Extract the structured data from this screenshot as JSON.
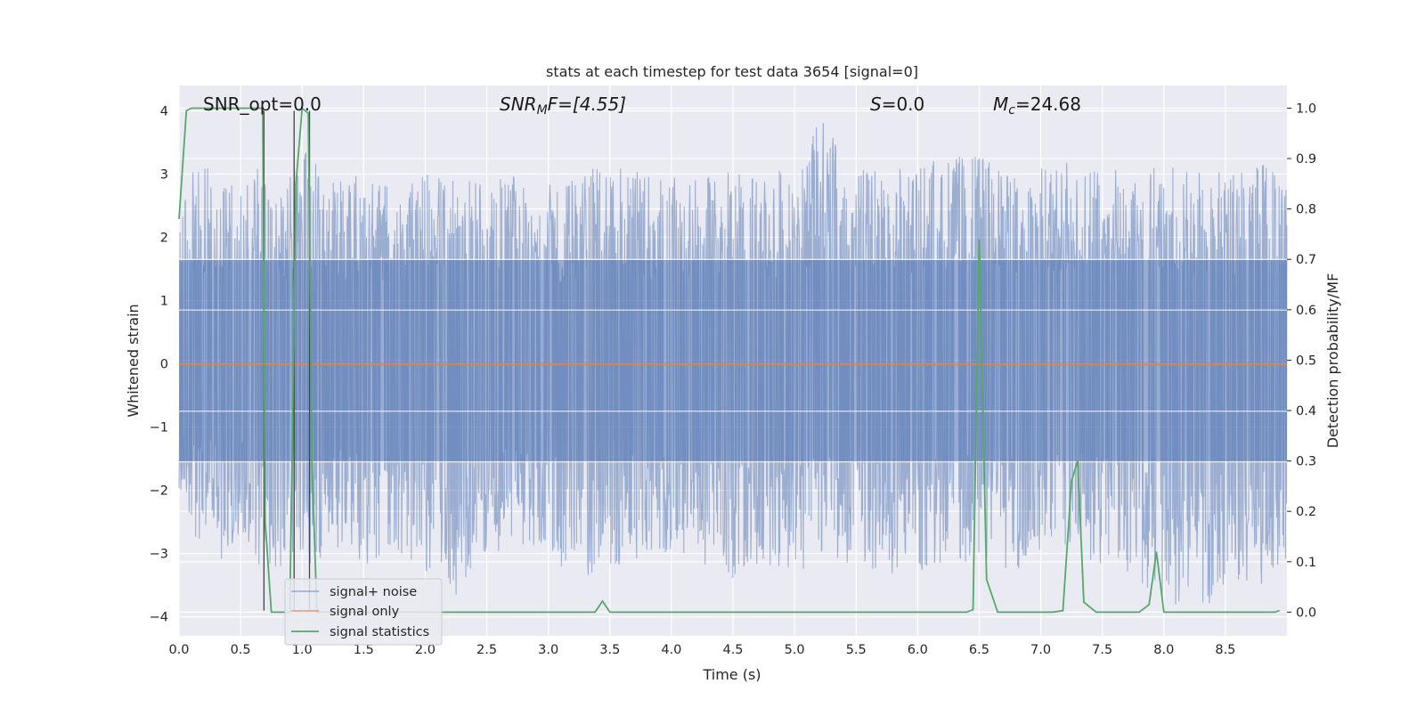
{
  "chart_data": {
    "type": "line",
    "title": "stats at each timestep for test data 3654 [signal=0]",
    "xlabel": "Time (s)",
    "ylabel_left": "Whitened strain",
    "ylabel_right": "Detection probability/MF",
    "xlim": [
      0.0,
      9.0
    ],
    "ylim_left": [
      -4.3,
      4.4
    ],
    "ylim_right": [
      -0.047,
      1.045
    ],
    "x_ticks": [
      "0.0",
      "0.5",
      "1.0",
      "1.5",
      "2.0",
      "2.5",
      "3.0",
      "3.5",
      "4.0",
      "4.5",
      "5.0",
      "5.5",
      "6.0",
      "6.5",
      "7.0",
      "7.5",
      "8.0",
      "8.5"
    ],
    "y_left_ticks": [
      "4",
      "3",
      "2",
      "1",
      "0",
      "−1",
      "−2",
      "−3",
      "−4"
    ],
    "y_right_ticks": [
      "1.0",
      "0.9",
      "0.8",
      "0.7",
      "0.6",
      "0.5",
      "0.4",
      "0.3",
      "0.2",
      "0.1",
      "0.0"
    ],
    "grid": true,
    "legend_position": "lower-left",
    "annotations": {
      "snr_opt": "SNR_opt=0.0",
      "snr_mf_sym": "SNR",
      "snr_mf_sub": "M",
      "snr_mf_rest": "F=[4.55]",
      "s_sym": "S",
      "s_rest": "=0.0",
      "mc_sym": "M",
      "mc_sub": "c",
      "mc_rest": "=24.68"
    },
    "colors": {
      "background": "#eaeaf2",
      "grid": "#ffffff",
      "signal_noise": "#4c72b0",
      "signal_only": "#dd8452",
      "signal_statistics": "#55a868",
      "vlines": "#444444"
    },
    "series": [
      {
        "name": "signal+ noise",
        "axis": "left",
        "note_values": "dense whitened noise, approx range -3.9..4.0, visual envelope peaks",
        "peak_times": [
          0.05,
          0.15,
          0.25,
          0.35,
          0.45,
          0.52,
          0.66,
          0.75,
          0.88,
          1.05,
          1.12,
          1.25,
          1.5,
          1.75,
          2.0,
          2.25,
          2.5,
          2.8,
          3.1,
          3.4,
          3.8,
          4.2,
          4.5,
          4.8,
          5.1,
          5.2,
          5.5,
          5.9,
          6.2,
          6.5,
          6.8,
          7.2,
          7.6,
          8.0,
          8.4,
          8.8
        ],
        "peak_values": [
          2.9,
          3.1,
          3.2,
          2.8,
          3.0,
          3.0,
          3.2,
          2.6,
          2.9,
          3.4,
          3.2,
          2.9,
          3.0,
          2.8,
          3.0,
          3.0,
          2.9,
          3.0,
          2.8,
          3.2,
          3.0,
          2.9,
          3.1,
          3.0,
          3.2,
          4.0,
          3.1,
          3.1,
          3.3,
          3.3,
          3.0,
          3.2,
          3.1,
          3.2,
          3.0,
          3.2
        ],
        "trough_values": [
          -2.1,
          -2.9,
          -2.6,
          -3.2,
          -2.8,
          -2.7,
          -3.3,
          -3.4,
          -3.1,
          -3.1,
          -3.4,
          -2.9,
          -3.2,
          -3.0,
          -3.3,
          -3.8,
          -3.0,
          -2.9,
          -3.2,
          -3.4,
          -3.0,
          -3.1,
          -3.4,
          -3.2,
          -3.3,
          -3.0,
          -3.2,
          -3.4,
          -3.2,
          -3.1,
          -3.3,
          -3.1,
          -3.2,
          -3.8,
          -3.9,
          -3.5
        ]
      },
      {
        "name": "signal only",
        "axis": "left",
        "x": [
          0.0,
          9.0
        ],
        "y": [
          0.0,
          0.0
        ]
      },
      {
        "name": "signal statistics",
        "axis": "right",
        "x": [
          0.0,
          0.06,
          0.1,
          0.5,
          0.68,
          0.7,
          0.75,
          0.8,
          0.85,
          0.9,
          0.95,
          1.0,
          1.05,
          1.08,
          1.12,
          1.2,
          3.38,
          3.44,
          3.5,
          3.56,
          6.4,
          6.45,
          6.5,
          6.56,
          6.65,
          7.1,
          7.18,
          7.25,
          7.3,
          7.35,
          7.45,
          7.8,
          7.88,
          7.94,
          8.0,
          8.9,
          8.94
        ],
        "y": [
          0.78,
          0.995,
          1.0,
          1.0,
          1.0,
          0.18,
          0.0,
          0.0,
          0.0,
          0.0,
          0.85,
          1.0,
          0.99,
          0.3,
          0.0,
          0.0,
          0.0,
          0.022,
          0.0,
          0.0,
          0.0,
          0.005,
          0.74,
          0.065,
          0.0,
          0.0,
          0.003,
          0.26,
          0.3,
          0.02,
          0.0,
          0.0,
          0.015,
          0.12,
          0.0,
          0.0,
          0.003
        ]
      }
    ],
    "vertical_lines": {
      "x": [
        0.69,
        0.935,
        1.06
      ],
      "y_range": [
        -3.9,
        4.0
      ]
    },
    "legend": {
      "items": [
        "signal+ noise",
        "signal only",
        "signal statistics"
      ]
    }
  }
}
